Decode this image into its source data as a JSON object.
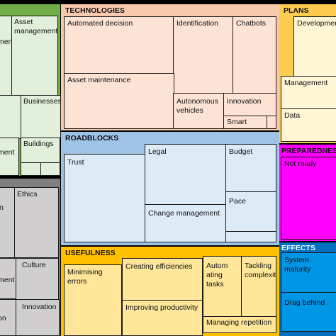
{
  "groups": {
    "technologies": {
      "title": "TECHNOLOGIES",
      "bg": "#f9c9ae",
      "cell_bg": "#fde3d4",
      "cells": {
        "automated_decision": "Automated decision",
        "identification": "Identification",
        "chatbots": "Chatbots",
        "asset_maintenance": "Asset maintenance",
        "autonomous_vehicles": "Autonomous vehicles",
        "innovation": "Innovation",
        "smart": "Smart"
      }
    },
    "plans": {
      "title": "PLANS",
      "bg": "#fbcc4e",
      "cell_bg": "#fff6d6",
      "cells": {
        "development": "Development",
        "management": "Management",
        "data": "Data"
      }
    },
    "roadblocks": {
      "title": "ROADBLOCKS",
      "bg": "#9ec3e6",
      "cell_bg": "#ddebf7",
      "cells": {
        "trust": "Trust",
        "legal": "Legal",
        "budget": "Budget",
        "change_management": "Change management",
        "pace": "Pace"
      }
    },
    "preparedness": {
      "title": "PREPAREDNESS",
      "bg": "#ff00ff",
      "cell_bg": "#ff00ff",
      "cells": {
        "not_ready": "Not ready"
      }
    },
    "usefulness": {
      "title": "USEFULNESS",
      "bg": "#ffc000",
      "cell_bg": "#ffe699",
      "cells": {
        "minimising_errors": "Minimising errors",
        "creating_efficiencies": "Creating efficiencies",
        "improving_productivity": "Improving productivity",
        "automating_tasks": "Autom ating tasks",
        "tackling_complexity": "Tackling complexity",
        "managing_repetition": "Managing repetition"
      }
    },
    "effects": {
      "title": "EFFECTS",
      "bg": "#0070c0",
      "cell_bg": "#0096e6",
      "cells": {
        "system_maturity": "System maturity",
        "drag_behind": "Drag behind"
      }
    },
    "green_group": {
      "bg": "#70ad47",
      "cell_bg": "#e2efda",
      "cells": {
        "ment_fragment_1": "ment",
        "asset_management": "Asset management",
        "businesses": "Businesses",
        "buildings": "Buildings",
        "ment_fragment_2": "ment"
      }
    },
    "grey_group": {
      "bg": "#7f7f7f",
      "cell_bg": "#d0cece",
      "cells": {
        "n_fragment": "n",
        "ethics": "Ethics",
        "ment_fragment_3": "ment",
        "culture": "Culture",
        "on_fragment": "on",
        "innovation": "Innovation"
      }
    }
  }
}
